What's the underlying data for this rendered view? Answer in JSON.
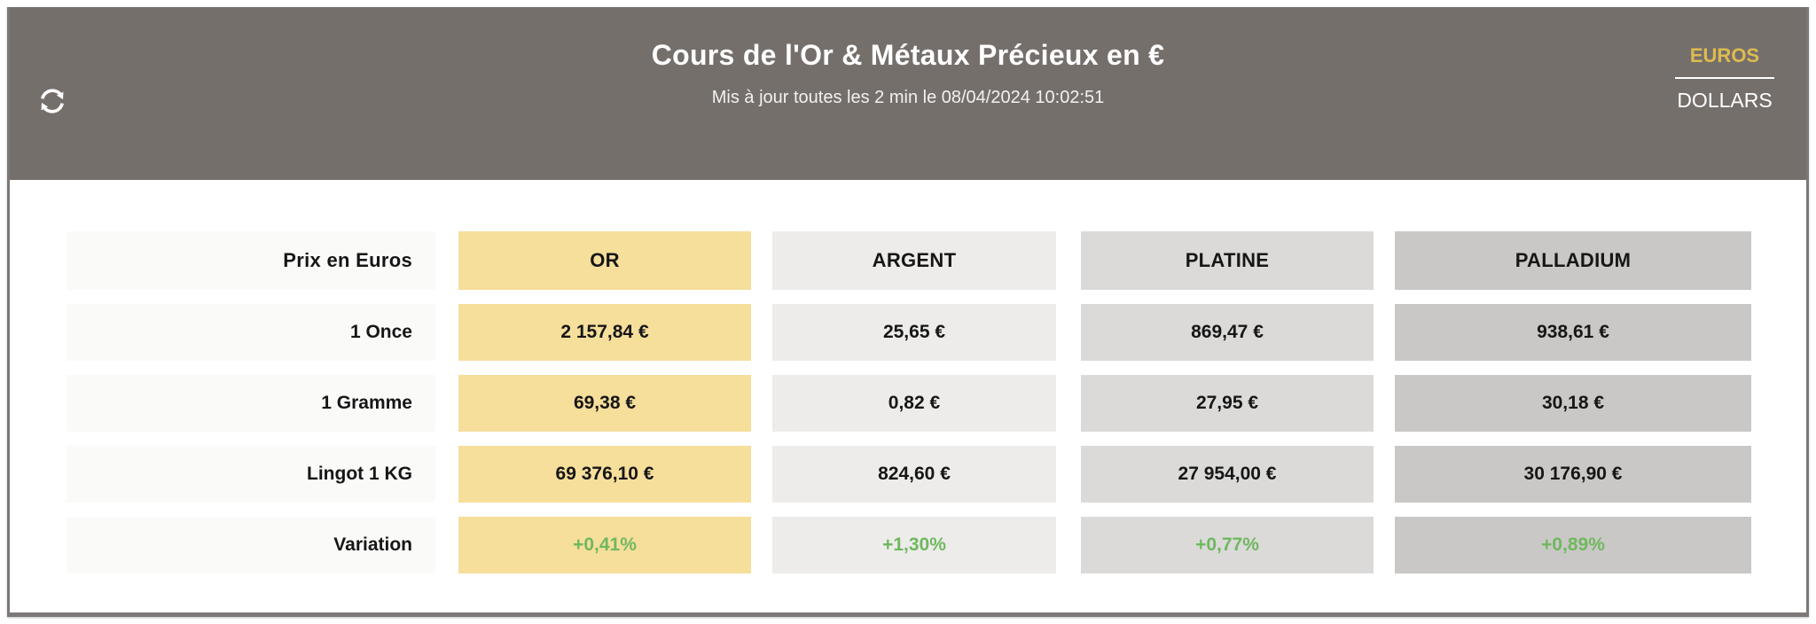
{
  "header": {
    "title": "Cours de l'Or & Métaux Précieux en €",
    "subtitle": "Mis à jour toutes les 2 min le 08/04/2024 10:02:51",
    "currency_toggle": {
      "active": "EUROS",
      "inactive": "DOLLARS"
    }
  },
  "table": {
    "corner_label": "Prix en Euros",
    "columns": [
      {
        "key": "or",
        "label": "OR",
        "color": "#f6de9b"
      },
      {
        "key": "argent",
        "label": "ARGENT",
        "color": "#edecea"
      },
      {
        "key": "platine",
        "label": "PLATINE",
        "color": "#dbdad9"
      },
      {
        "key": "palladium",
        "label": "PALLADIUM",
        "color": "#cac8c6"
      }
    ],
    "rows": [
      {
        "key": "once",
        "label": "1 Once",
        "type": "price",
        "values": [
          "2 157,84 €",
          "25,65 €",
          "869,47 €",
          "938,61 €"
        ]
      },
      {
        "key": "gramme",
        "label": "1 Gramme",
        "type": "price",
        "values": [
          "69,38 €",
          "0,82 €",
          "27,95 €",
          "30,18 €"
        ]
      },
      {
        "key": "lingot",
        "label": "Lingot 1 KG",
        "type": "price",
        "values": [
          "69 376,10 €",
          "824,60 €",
          "27 954,00 €",
          "30 176,90 €"
        ]
      },
      {
        "key": "variation",
        "label": "Variation",
        "type": "variation",
        "values": [
          "+0,41%",
          "+1,30%",
          "+0,77%",
          "+0,89%"
        ]
      }
    ]
  },
  "colors": {
    "header_bg": "#756f6c",
    "accent_gold": "#ddbb4e",
    "gold_cell": "#f6de9b",
    "silver_cell": "#edecea",
    "platinum_cell": "#dbdad9",
    "palladium_cell": "#cac8c6",
    "label_cell_bg": "#fafaf9",
    "positive_green": "#6fb85f",
    "text_dark": "#161616"
  }
}
